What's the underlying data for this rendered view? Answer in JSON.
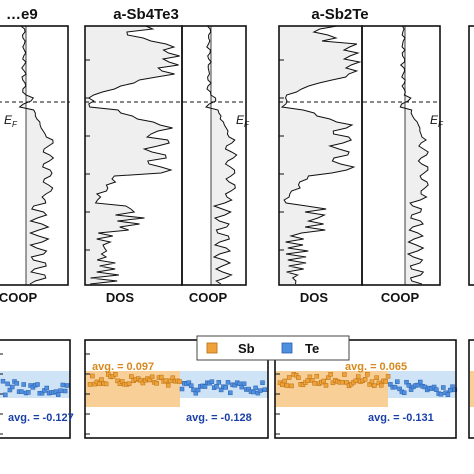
{
  "chart_data": {
    "type": "line",
    "dos_coop": {
      "panels": [
        {
          "title": "…e9",
          "xlabels": [
            "",
            "COOP"
          ]
        },
        {
          "title": "a-Sb4Te3",
          "xlabels": [
            "DOS",
            "COOP"
          ]
        },
        {
          "title": "a-Sb2Te",
          "xlabels": [
            "DOS",
            "COOP"
          ]
        }
      ],
      "fermi_label": "E",
      "fermi_sub": "F"
    },
    "scatter_panels": [
      {
        "avg_sb": "",
        "avg_te": "avg. = -0.127"
      },
      {
        "avg_sb": "avg. = 0.097",
        "avg_te": "avg. = -0.128"
      },
      {
        "avg_sb": "avg. = 0.065",
        "avg_te": "avg. = -0.131"
      }
    ],
    "legend": {
      "items": [
        "Sb",
        "Te"
      ]
    },
    "colors": {
      "sb": "#f0a23a",
      "sb_region": "#f7cf97",
      "te": "#4f8fe0",
      "te_region": "#cfe3f6",
      "dos_fill": "#efefef",
      "avg_sb_text": "#d7891d",
      "avg_te_text": "#1a3fa8"
    }
  }
}
